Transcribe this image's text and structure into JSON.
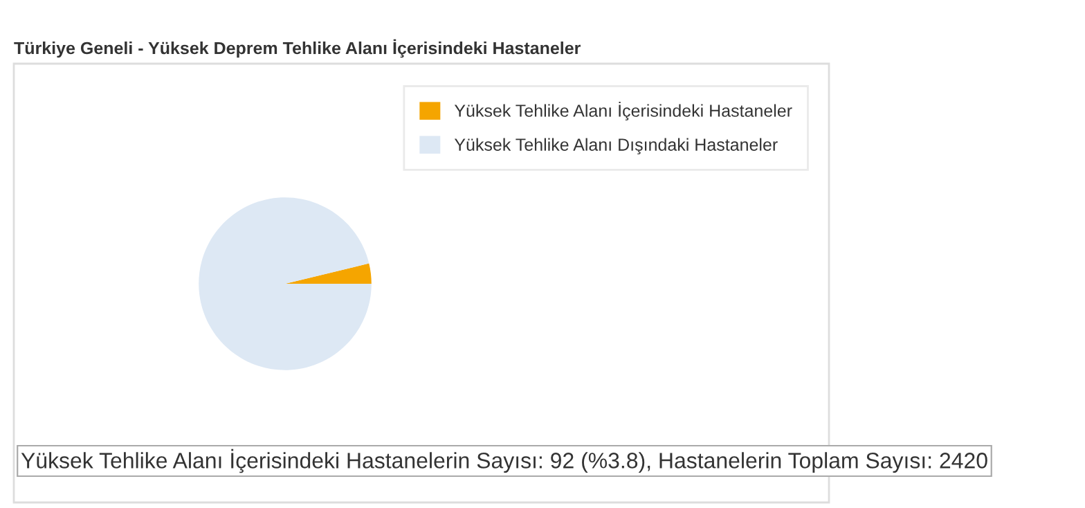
{
  "chart_data": {
    "type": "pie",
    "title": "Türkiye Geneli - Yüksek Deprem Tehlike Alanı İçerisindeki Hastaneler",
    "categories": [
      "Yüksek Tehlike Alanı İçerisindeki Hastaneler",
      "Yüksek Tehlike Alanı Dışındaki Hastaneler"
    ],
    "values": [
      3.8,
      96.2
    ],
    "colors": [
      "#f5a500",
      "#dde8f4"
    ],
    "legend": "top right",
    "annotations": [
      "Yüksek Tehlike Alanı İçerisindeki Hastanelerin Sayısı: 92 (%3.8), Hastanelerin Toplam Sayısı: 2420"
    ]
  }
}
